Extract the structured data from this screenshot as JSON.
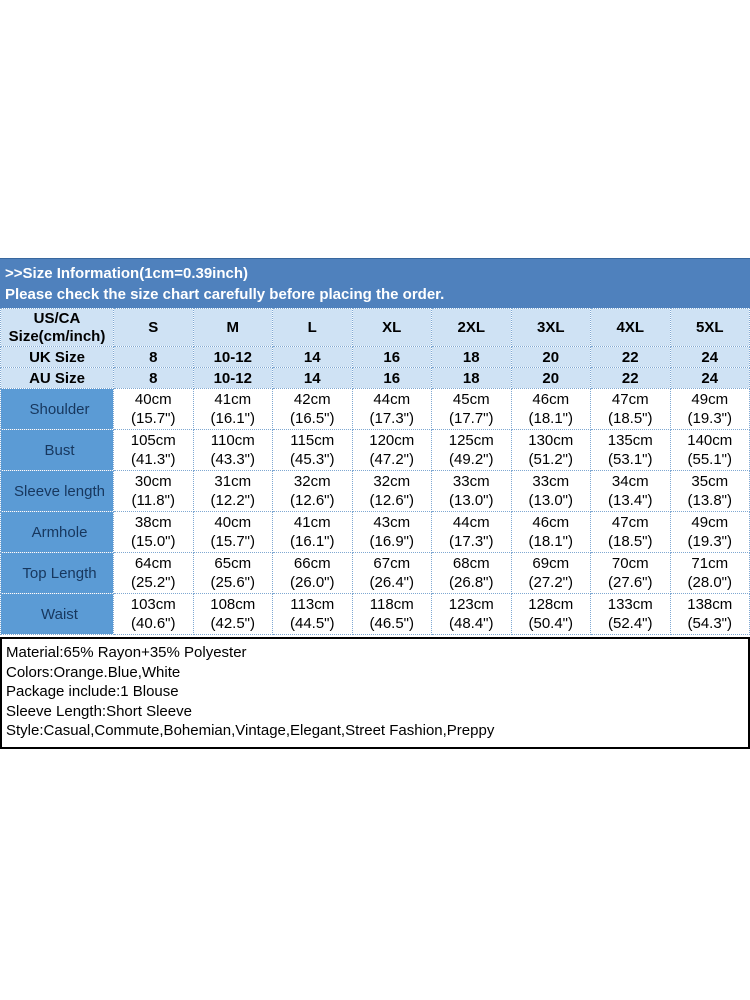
{
  "banner": {
    "line1": ">>Size Information(1cm=0.39inch)",
    "line2": "Please check the size chart carefully before placing the order."
  },
  "size_table": {
    "corner_line1": "US/CA",
    "corner_line2": "Size(cm/inch)",
    "sizes": [
      "S",
      "M",
      "L",
      "XL",
      "2XL",
      "3XL",
      "4XL",
      "5XL"
    ],
    "uk_label": "UK Size",
    "uk_values": [
      "8",
      "10-12",
      "14",
      "16",
      "18",
      "20",
      "22",
      "24"
    ],
    "au_label": "AU Size",
    "au_values": [
      "8",
      "10-12",
      "14",
      "16",
      "18",
      "20",
      "22",
      "24"
    ],
    "measurements": [
      {
        "label": "Shoulder",
        "values": [
          {
            "cm": "40cm",
            "inch": "(15.7\")"
          },
          {
            "cm": "41cm",
            "inch": "(16.1\")"
          },
          {
            "cm": "42cm",
            "inch": "(16.5\")"
          },
          {
            "cm": "44cm",
            "inch": "(17.3\")"
          },
          {
            "cm": "45cm",
            "inch": "(17.7\")"
          },
          {
            "cm": "46cm",
            "inch": "(18.1\")"
          },
          {
            "cm": "47cm",
            "inch": "(18.5\")"
          },
          {
            "cm": "49cm",
            "inch": "(19.3\")"
          }
        ]
      },
      {
        "label": "Bust",
        "values": [
          {
            "cm": "105cm",
            "inch": "(41.3\")"
          },
          {
            "cm": "110cm",
            "inch": "(43.3\")"
          },
          {
            "cm": "115cm",
            "inch": "(45.3\")"
          },
          {
            "cm": "120cm",
            "inch": "(47.2\")"
          },
          {
            "cm": "125cm",
            "inch": "(49.2\")"
          },
          {
            "cm": "130cm",
            "inch": "(51.2\")"
          },
          {
            "cm": "135cm",
            "inch": "(53.1\")"
          },
          {
            "cm": "140cm",
            "inch": "(55.1\")"
          }
        ]
      },
      {
        "label": "Sleeve length",
        "values": [
          {
            "cm": "30cm",
            "inch": "(11.8\")"
          },
          {
            "cm": "31cm",
            "inch": "(12.2\")"
          },
          {
            "cm": "32cm",
            "inch": "(12.6\")"
          },
          {
            "cm": "32cm",
            "inch": "(12.6\")"
          },
          {
            "cm": "33cm",
            "inch": "(13.0\")"
          },
          {
            "cm": "33cm",
            "inch": "(13.0\")"
          },
          {
            "cm": "34cm",
            "inch": "(13.4\")"
          },
          {
            "cm": "35cm",
            "inch": "(13.8\")"
          }
        ]
      },
      {
        "label": "Armhole",
        "values": [
          {
            "cm": "38cm",
            "inch": "(15.0\")"
          },
          {
            "cm": "40cm",
            "inch": "(15.7\")"
          },
          {
            "cm": "41cm",
            "inch": "(16.1\")"
          },
          {
            "cm": "43cm",
            "inch": "(16.9\")"
          },
          {
            "cm": "44cm",
            "inch": "(17.3\")"
          },
          {
            "cm": "46cm",
            "inch": "(18.1\")"
          },
          {
            "cm": "47cm",
            "inch": "(18.5\")"
          },
          {
            "cm": "49cm",
            "inch": "(19.3\")"
          }
        ]
      },
      {
        "label": "Top Length",
        "values": [
          {
            "cm": "64cm",
            "inch": "(25.2\")"
          },
          {
            "cm": "65cm",
            "inch": "(25.6\")"
          },
          {
            "cm": "66cm",
            "inch": "(26.0\")"
          },
          {
            "cm": "67cm",
            "inch": "(26.4\")"
          },
          {
            "cm": "68cm",
            "inch": "(26.8\")"
          },
          {
            "cm": "69cm",
            "inch": "(27.2\")"
          },
          {
            "cm": "70cm",
            "inch": "(27.6\")"
          },
          {
            "cm": "71cm",
            "inch": "(28.0\")"
          }
        ]
      },
      {
        "label": "Waist",
        "values": [
          {
            "cm": "103cm",
            "inch": "(40.6\")"
          },
          {
            "cm": "108cm",
            "inch": "(42.5\")"
          },
          {
            "cm": "113cm",
            "inch": "(44.5\")"
          },
          {
            "cm": "118cm",
            "inch": "(46.5\")"
          },
          {
            "cm": "123cm",
            "inch": "(48.4\")"
          },
          {
            "cm": "128cm",
            "inch": "(50.4\")"
          },
          {
            "cm": "133cm",
            "inch": "(52.4\")"
          },
          {
            "cm": "138cm",
            "inch": "(54.3\")"
          }
        ]
      }
    ]
  },
  "details": {
    "lines": [
      "Material:65% Rayon+35% Polyester",
      "Colors:Orange.Blue,White",
      "Package include:1 Blouse",
      "Sleeve Length:Short Sleeve",
      "Style:Casual,Commute,Bohemian,Vintage,Elegant,Street Fashion,Preppy"
    ]
  },
  "colors": {
    "banner_blue": "#4f81bd",
    "header_light_blue": "#cfe2f4",
    "label_column_blue": "#5b9bd5",
    "label_text_navy": "#17375e",
    "cell_border_blue": "#7fa8d2",
    "details_border": "#000000"
  }
}
